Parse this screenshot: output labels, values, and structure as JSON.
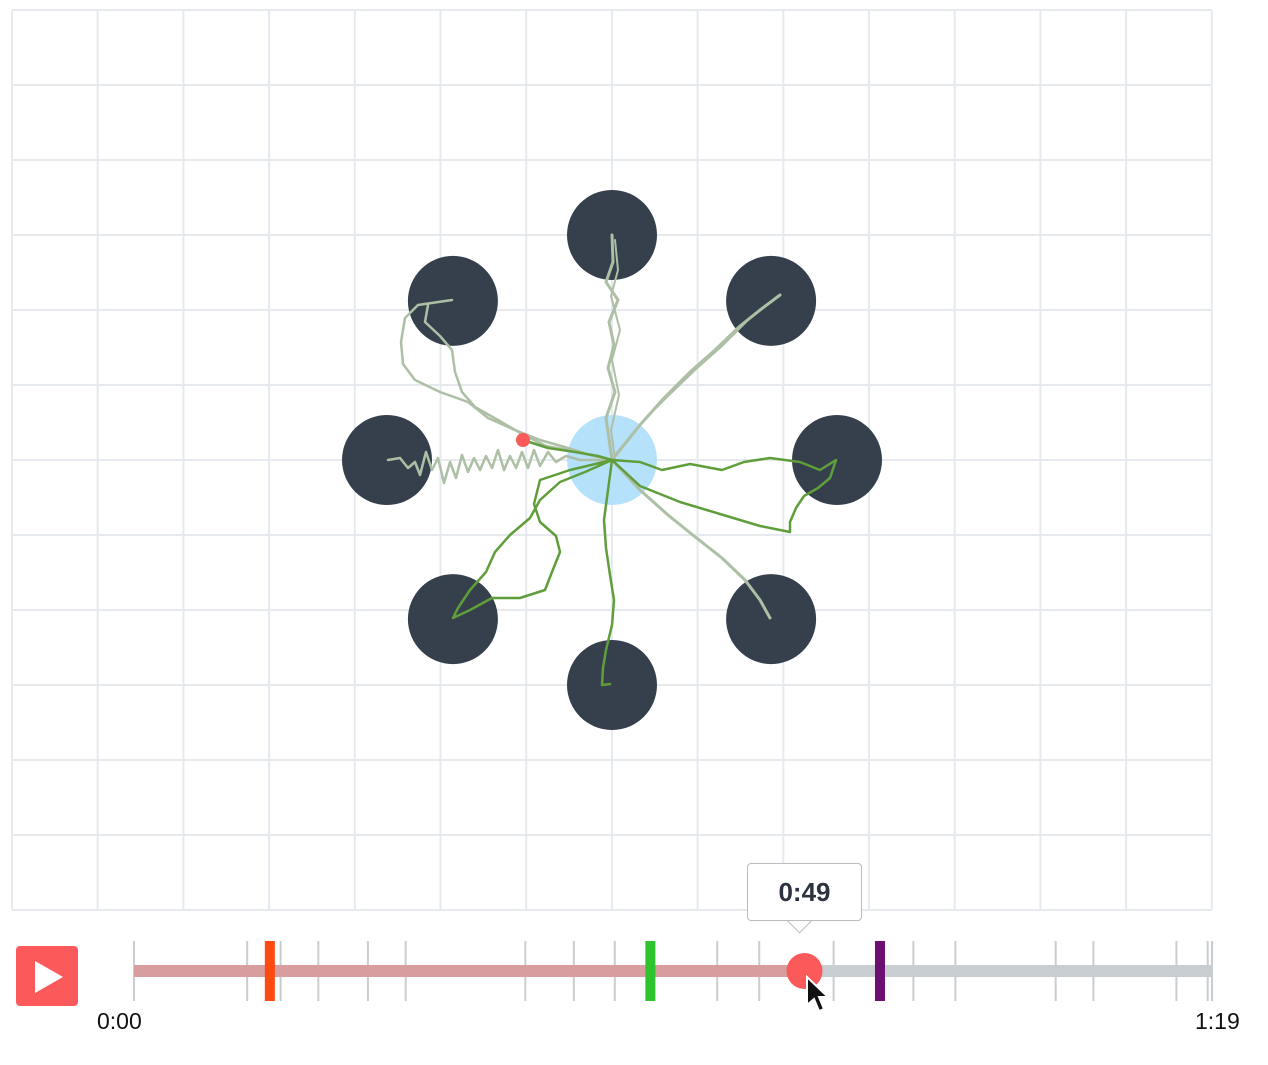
{
  "arena": {
    "grid_color": "#e6eaee",
    "hole_color": "#363f4c",
    "start_zone_color": "#b6e1fb",
    "path_color_past": "#adbfa5",
    "path_color_recent": "#5f9e3b",
    "agent_dot_color": "#fc5a5a",
    "holes": [
      {
        "id": "top",
        "angle_deg": 90
      },
      {
        "id": "top-right",
        "angle_deg": 45
      },
      {
        "id": "right",
        "angle_deg": 0
      },
      {
        "id": "bottom-right",
        "angle_deg": -45
      },
      {
        "id": "bottom",
        "angle_deg": -90
      },
      {
        "id": "bottom-left",
        "angle_deg": -135
      },
      {
        "id": "left",
        "angle_deg": 180
      },
      {
        "id": "top-left",
        "angle_deg": 135
      }
    ]
  },
  "player": {
    "play_icon": "play-icon",
    "start_time": "0:00",
    "end_time": "1:19",
    "current_time": "0:49",
    "progress_fraction": 0.62,
    "played_color": "#d89d9e",
    "remaining_color": "#c8cdd1",
    "thumb_color": "#fc5a5a",
    "markers": [
      {
        "name": "red",
        "color": "#ff4a10",
        "fraction": 0.126
      },
      {
        "name": "green",
        "color": "#2dc42d",
        "fraction": 0.479
      },
      {
        "name": "purple",
        "color": "#6b0f73",
        "fraction": 0.692
      }
    ]
  }
}
